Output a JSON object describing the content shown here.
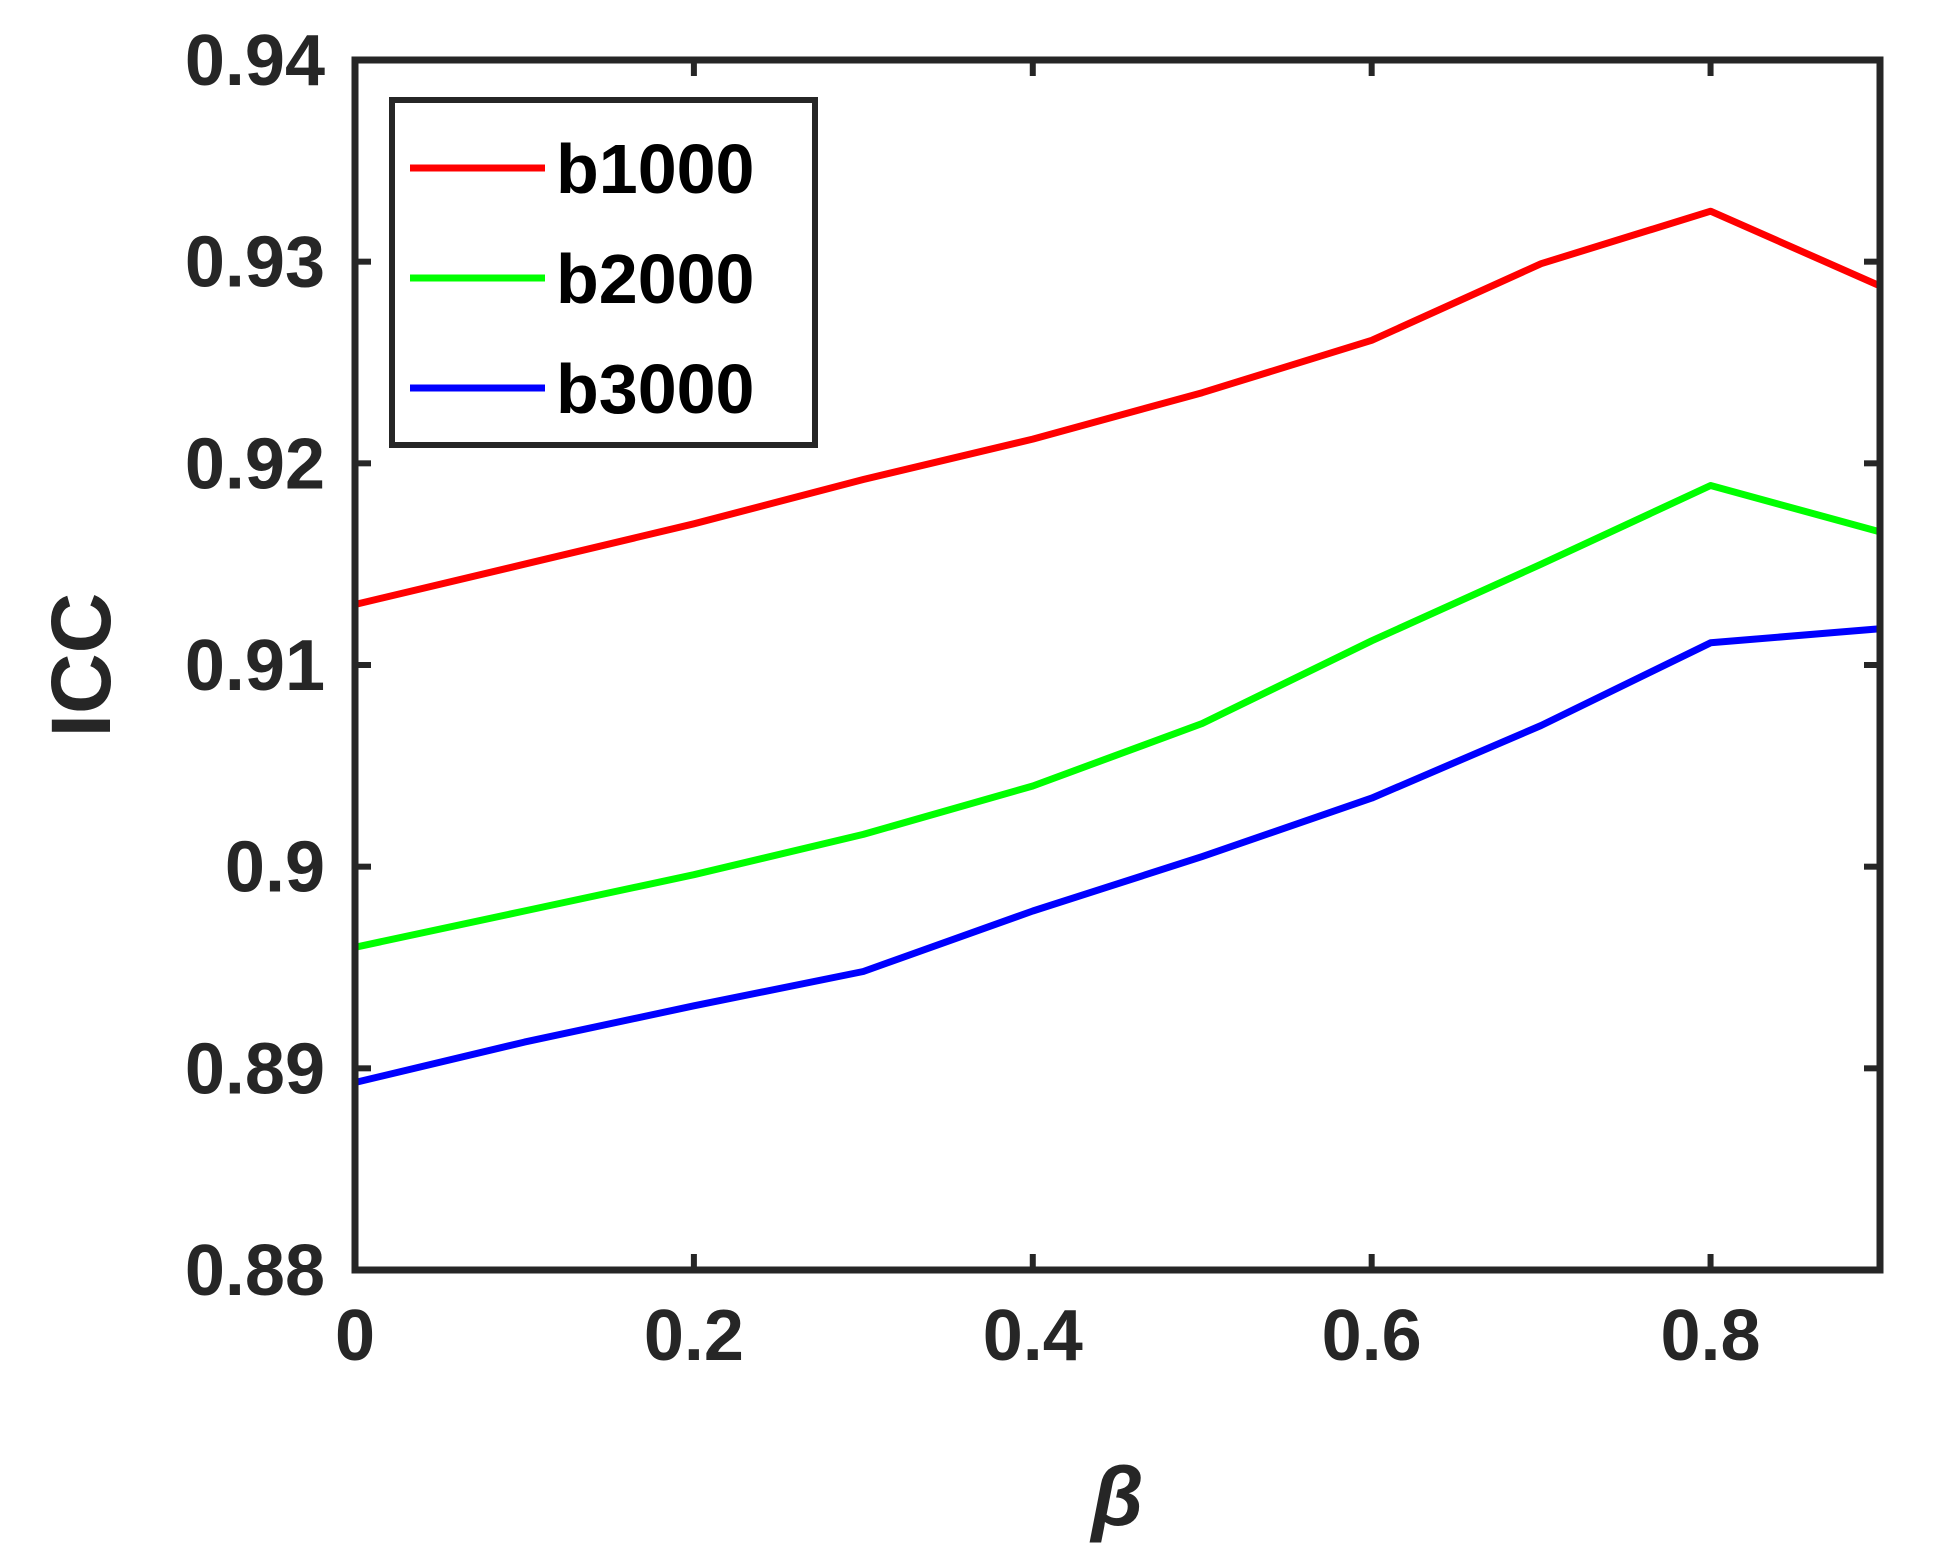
{
  "chart_data": {
    "type": "line",
    "title": "",
    "xlabel": "β",
    "ylabel": "ICC",
    "xlim": [
      0,
      0.9
    ],
    "ylim": [
      0.88,
      0.94
    ],
    "xticks": [
      0,
      0.2,
      0.4,
      0.6,
      0.8
    ],
    "xtick_labels": [
      "0",
      "0.2",
      "0.4",
      "0.6",
      "0.8"
    ],
    "yticks": [
      0.88,
      0.89,
      0.9,
      0.91,
      0.92,
      0.93,
      0.94
    ],
    "ytick_labels": [
      "0.88",
      "0.89",
      "0.9",
      "0.91",
      "0.92",
      "0.93",
      "0.94"
    ],
    "grid": false,
    "legend_position": "top-left",
    "x": [
      0,
      0.1,
      0.2,
      0.3,
      0.4,
      0.5,
      0.6,
      0.7,
      0.8,
      0.9
    ],
    "series": [
      {
        "name": "b1000",
        "color": "#ff0000",
        "values": [
          0.913,
          0.915,
          0.917,
          0.9192,
          0.9212,
          0.9235,
          0.9261,
          0.9299,
          0.9325,
          0.9288
        ]
      },
      {
        "name": "b2000",
        "color": "#00ff00",
        "values": [
          0.896,
          0.8978,
          0.8996,
          0.9016,
          0.904,
          0.9071,
          0.9112,
          0.915,
          0.9189,
          0.9166
        ]
      },
      {
        "name": "b3000",
        "color": "#0000ff",
        "values": [
          0.8893,
          0.8913,
          0.8931,
          0.8948,
          0.8978,
          0.9005,
          0.9034,
          0.907,
          0.9111,
          0.9118
        ]
      }
    ]
  }
}
